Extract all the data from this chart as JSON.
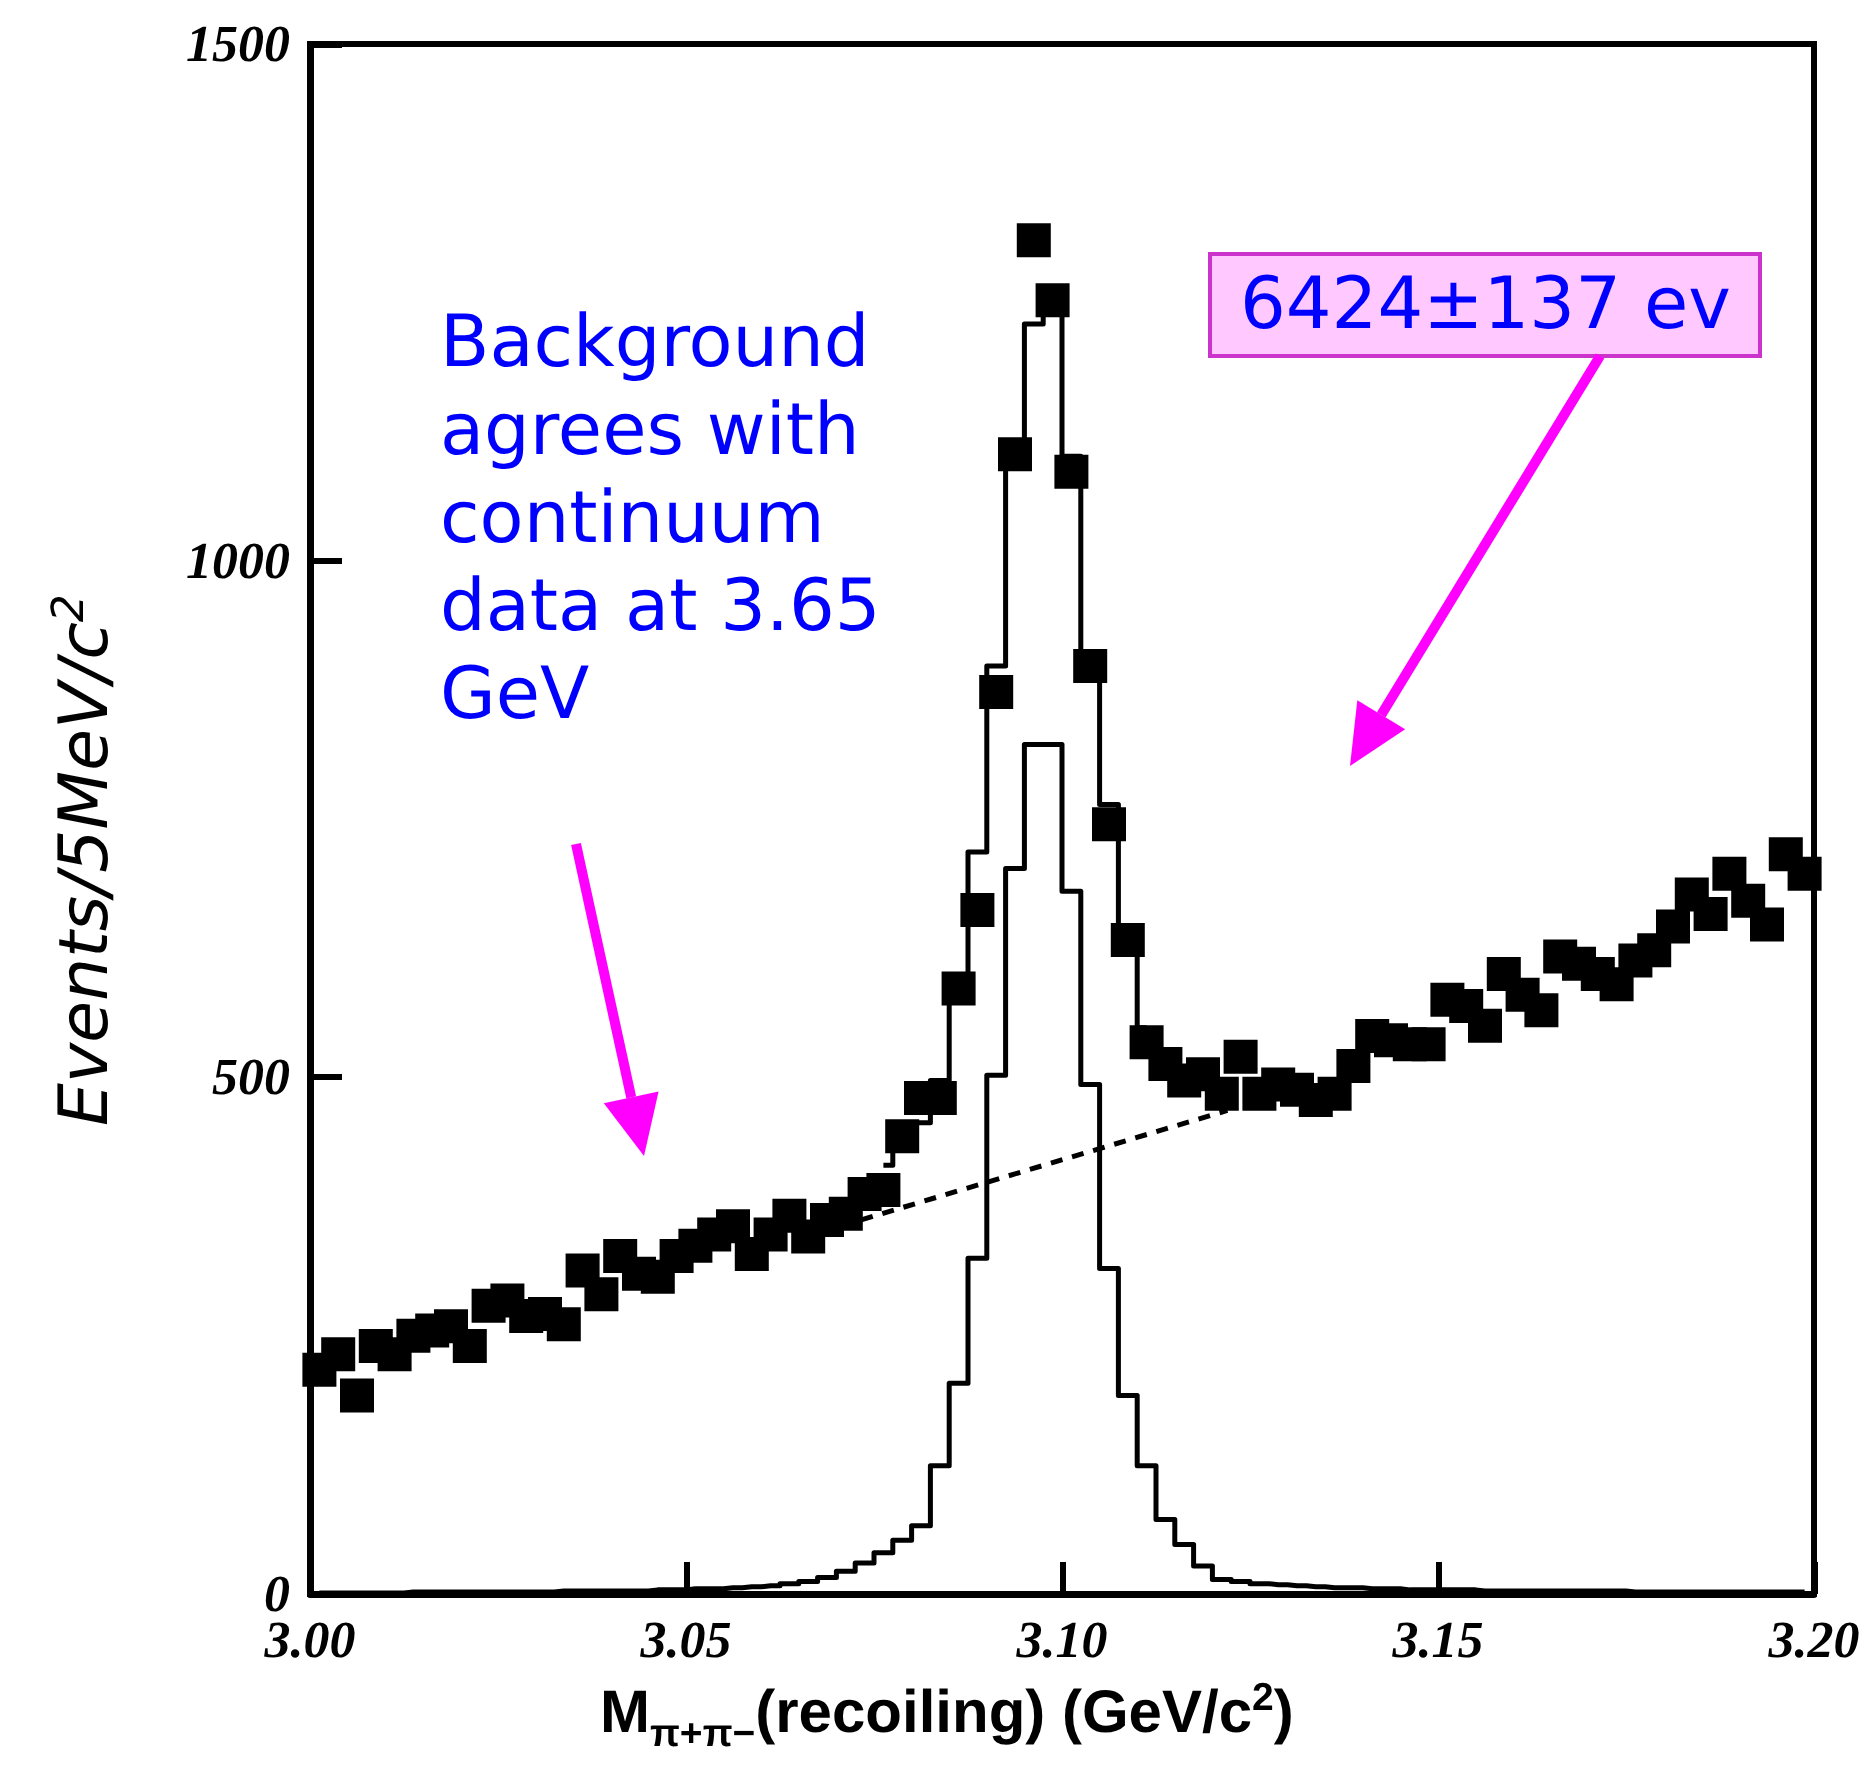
{
  "chart_data": {
    "type": "scatter",
    "xlabel": "M$_{π+π−}$(recoiling) (GeV/c$^{2}$)",
    "ylabel": "Events/5MeV/c$^{2}$",
    "annotations": [
      "Background agrees with continuum data at 3.65 GeV",
      "6424±137 ev"
    ],
    "xlim": [
      3.0,
      3.2
    ],
    "xticks": [
      {
        "value": 3.0,
        "label": "3.00"
      },
      {
        "value": 3.05,
        "label": "3.05"
      },
      {
        "value": 3.1,
        "label": "3.10"
      },
      {
        "value": 3.15,
        "label": "3.15"
      },
      {
        "value": 3.2,
        "label": "3.20"
      }
    ],
    "ylim": [
      0,
      1500
    ],
    "yticks": [
      0,
      500,
      1000,
      1500
    ],
    "grid": false,
    "series": [
      {
        "marker": "square",
        "color": "#000000",
        "x": [
          3.00125,
          3.00375,
          3.00625,
          3.00875,
          3.01125,
          3.01375,
          3.01625,
          3.01875,
          3.02125,
          3.02375,
          3.02625,
          3.02875,
          3.03125,
          3.03375,
          3.03625,
          3.03875,
          3.04125,
          3.04375,
          3.04625,
          3.04875,
          3.05125,
          3.05375,
          3.05625,
          3.05875,
          3.06125,
          3.06375,
          3.06625,
          3.06875,
          3.07125,
          3.07375,
          3.07625,
          3.07875,
          3.08125,
          3.08375,
          3.08625,
          3.08875,
          3.09125,
          3.09375,
          3.09625,
          3.09875,
          3.10125,
          3.10375,
          3.10625,
          3.10875,
          3.11125,
          3.11375,
          3.11625,
          3.11875,
          3.12125,
          3.12375,
          3.12625,
          3.12875,
          3.13125,
          3.13375,
          3.13625,
          3.13875,
          3.14125,
          3.14375,
          3.14625,
          3.14875,
          3.15125,
          3.15375,
          3.15625,
          3.15875,
          3.16125,
          3.16375,
          3.16625,
          3.16875,
          3.17125,
          3.17375,
          3.17625,
          3.17875,
          3.18125,
          3.18375,
          3.18625,
          3.18875,
          3.19125,
          3.19375,
          3.19625,
          3.19875
        ],
        "values": [
          217,
          232,
          192,
          240,
          232,
          250,
          255,
          259,
          240,
          279,
          284,
          269,
          271,
          261,
          313,
          290,
          327,
          310,
          307,
          327,
          337,
          348,
          356,
          329,
          348,
          366,
          346,
          362,
          368,
          387,
          391,
          443,
          480,
          480,
          586,
          662,
          873,
          1103,
          1310,
          1252,
          1086,
          898,
          745,
          633,
          534,
          513,
          497,
          503,
          484,
          520,
          484,
          493,
          488,
          478,
          484,
          511,
          540,
          536,
          532,
          532,
          575,
          569,
          550,
          600,
          580,
          565,
          617,
          610,
          600,
          590,
          613,
          623,
          646,
          677,
          658,
          697,
          671,
          648,
          716,
          697
        ]
      },
      {
        "type": "step",
        "marker": "none",
        "color": "#000000",
        "x": [
          3.07625,
          3.07875,
          3.08125,
          3.08375,
          3.08625,
          3.08875,
          3.09125,
          3.09375,
          3.09625,
          3.09875,
          3.10125,
          3.10375,
          3.10625,
          3.10875,
          3.11125
        ],
        "values": [
          415,
          440,
          456,
          497,
          586,
          718,
          898,
          1112,
          1229,
          1262,
          1101,
          911,
          764,
          640,
          548
        ]
      },
      {
        "type": "step",
        "marker": "none",
        "color": "#000000",
        "x": [
          3.00125,
          3.00375,
          3.00625,
          3.00875,
          3.01125,
          3.01375,
          3.01625,
          3.01875,
          3.02125,
          3.02375,
          3.02625,
          3.02875,
          3.03125,
          3.03375,
          3.03625,
          3.03875,
          3.04125,
          3.04375,
          3.04625,
          3.04875,
          3.05125,
          3.05375,
          3.05625,
          3.05875,
          3.06125,
          3.06375,
          3.06625,
          3.06875,
          3.07125,
          3.07375,
          3.07625,
          3.07875,
          3.08125,
          3.08375,
          3.08625,
          3.08875,
          3.09125,
          3.09375,
          3.09625,
          3.09875,
          3.10125,
          3.10375,
          3.10625,
          3.10875,
          3.11125,
          3.11375,
          3.11625,
          3.11875,
          3.12125,
          3.12375,
          3.12625,
          3.12875,
          3.13125,
          3.13375,
          3.13625,
          3.13875,
          3.14125,
          3.14375,
          3.14625,
          3.14875,
          3.15125,
          3.15375,
          3.15625,
          3.15875,
          3.16125,
          3.16375,
          3.16625,
          3.16875,
          3.17125,
          3.17375,
          3.17625,
          3.17875,
          3.18125,
          3.18375,
          3.18625,
          3.18875,
          3.19125,
          3.19375,
          3.19625,
          3.19875
        ],
        "values": [
          1,
          1,
          1,
          1,
          1,
          2,
          2,
          2,
          2,
          2,
          2,
          2,
          2,
          3,
          3,
          3,
          3,
          3,
          4,
          4,
          5,
          5,
          6,
          7,
          8,
          10,
          12,
          16,
          22,
          30,
          40,
          52,
          66,
          124,
          204,
          325,
          502,
          702,
          822,
          822,
          680,
          493,
          315,
          192,
          124,
          72,
          48,
          27,
          14,
          12,
          10,
          9,
          8,
          7,
          6,
          6,
          5,
          5,
          4,
          4,
          4,
          4,
          3,
          3,
          3,
          3,
          3,
          3,
          3,
          3,
          2,
          2,
          2,
          2,
          2,
          2,
          2,
          2,
          2,
          2
        ]
      },
      {
        "type": "line",
        "marker": "none",
        "line_style": "dashed",
        "color": "#000000",
        "x": [
          3.0705,
          3.122
        ],
        "values": [
          356,
          468
        ]
      }
    ]
  }
}
